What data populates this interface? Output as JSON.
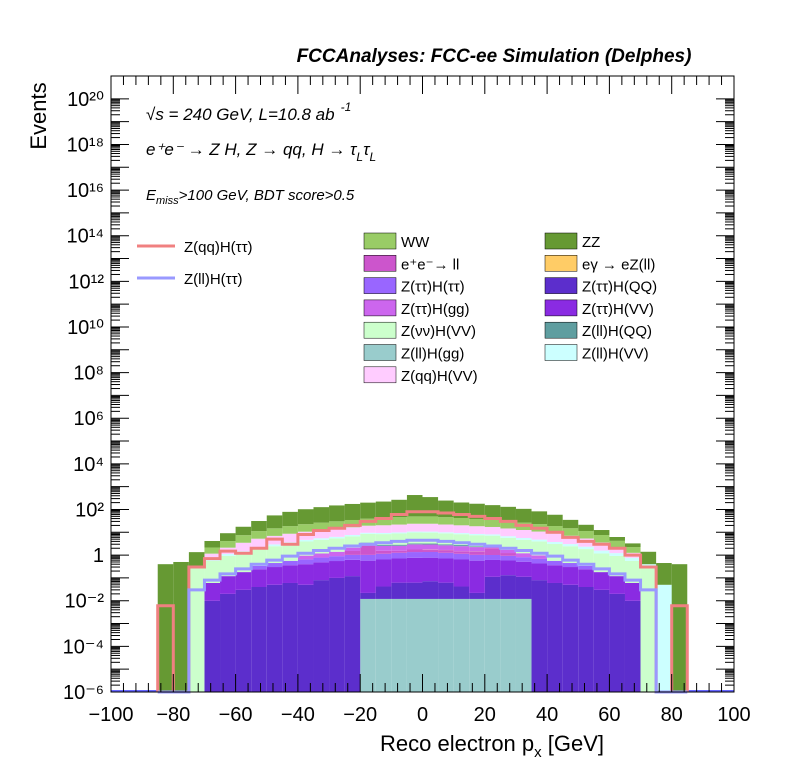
{
  "chart_data": {
    "type": "bar",
    "title": "FCCAnalyses: FCC-ee Simulation (Delphes)",
    "xlabel": "Reco electron p",
    "xlabel_sub": "x",
    "xlabel_unit": " [GeV]",
    "ylabel": "Events",
    "xlim": [
      -100,
      100
    ],
    "ylim": [
      1e-06,
      1e+21
    ],
    "log_y": true,
    "grid": false,
    "legend_position": "top",
    "x_tick_labels": [
      "−100",
      "−80",
      "−60",
      "−40",
      "−20",
      "0",
      "20",
      "40",
      "60",
      "80",
      "100"
    ],
    "y_tick_labels": [
      "10⁻⁶",
      "10⁻⁴",
      "10⁻²",
      "1",
      "10²",
      "10⁴",
      "10⁶",
      "10⁸",
      "10¹⁰",
      "10¹²",
      "10¹⁴",
      "10¹⁶",
      "10¹⁸",
      "10²⁰"
    ],
    "annotations": {
      "line1": "√s = 240 GeV, L=10.8 ab",
      "line1_sup": "-1",
      "line2": "e⁺e⁻ → Z H, Z → qq, H → τ",
      "line2_sub": "L",
      "line3": "E",
      "line3_sub": "miss",
      "line3_rest": ">100 GeV, BDT score>0.5"
    },
    "bin_edges": [
      -85,
      -80,
      -75,
      -70,
      -65,
      -60,
      -55,
      -50,
      -45,
      -40,
      -35,
      -30,
      -25,
      -20,
      -15,
      -10,
      -5,
      0,
      5,
      10,
      15,
      20,
      25,
      30,
      35,
      40,
      45,
      50,
      55,
      60,
      65,
      70,
      75,
      80,
      85
    ],
    "stack_order": [
      "Z(ll)H(gg)",
      "Z(ττ)H(QQ)",
      "Z(ττ)H(VV)",
      "Z(ττ)H(ττ)",
      "e⁺e⁻→ ll",
      "eγ → eZ(ll)",
      "Z(ττ)H(gg)",
      "Z(ll)H(QQ)",
      "Z(νν)H(VV)",
      "Z(ll)H(VV)",
      "Z(qq)H(VV)",
      "WW",
      "ZZ"
    ],
    "series": [
      {
        "name": "Z(ll)H(gg)",
        "color": "#99cccc",
        "values": [
          0,
          0,
          0,
          0,
          0,
          0,
          0,
          0,
          0,
          0,
          0,
          0,
          0,
          0.012,
          0.012,
          0.012,
          0.012,
          0.012,
          0.012,
          0.012,
          0.012,
          0.012,
          0.012,
          0.012,
          0,
          0,
          0,
          0,
          0,
          0,
          0,
          0,
          0,
          0
        ]
      },
      {
        "name": "Z(ττ)H(QQ)",
        "color": "#5c2ecc",
        "values": [
          0,
          0,
          0,
          0.01,
          0.02,
          0.03,
          0.04,
          0.05,
          0.06,
          0.05,
          0.08,
          0.1,
          0.12,
          0.01,
          0.03,
          0.05,
          0.05,
          0.06,
          0.05,
          0.03,
          0.01,
          0.1,
          0.12,
          0.1,
          0.08,
          0.06,
          0.05,
          0.04,
          0.03,
          0.02,
          0.01,
          0,
          0,
          0
        ]
      },
      {
        "name": "Z(ττ)H(VV)",
        "color": "#8a2be2",
        "values": [
          0,
          0,
          0,
          0.05,
          0.1,
          0.15,
          0.2,
          0.25,
          0.3,
          0.35,
          0.4,
          0.45,
          0.5,
          0.55,
          0.6,
          0.65,
          0.7,
          0.7,
          0.65,
          0.6,
          0.55,
          0.5,
          0.45,
          0.4,
          0.35,
          0.3,
          0.25,
          0.2,
          0.15,
          0.1,
          0.05,
          0,
          0,
          0
        ]
      },
      {
        "name": "Z(ττ)H(ττ)",
        "color": "#9966ff",
        "values": [
          0,
          0,
          0,
          0,
          0,
          0,
          0.1,
          0.15,
          0.2,
          0.25,
          0.3,
          0.35,
          0.4,
          0.45,
          0.5,
          0.55,
          0.6,
          0.6,
          0.55,
          0.5,
          0.45,
          0.4,
          0.35,
          0.3,
          0.25,
          0.2,
          0.15,
          0.1,
          0,
          0,
          0,
          0,
          0,
          0
        ]
      },
      {
        "name": "e⁺e⁻→ ll",
        "color": "#cc55cc",
        "values": [
          0,
          0,
          0,
          0,
          0,
          0,
          0,
          0,
          0,
          0,
          0,
          0,
          0.5,
          1.5,
          0.4,
          0.3,
          0.4,
          0.3,
          0.4,
          0.3,
          0.4,
          1.0,
          0.3,
          0,
          0,
          0,
          0,
          0,
          0,
          0,
          0,
          0,
          0,
          0
        ]
      },
      {
        "name": "eγ → eZ(ll)",
        "color": "#ffcc66",
        "values": [
          0,
          0,
          0,
          0,
          0,
          0,
          0,
          0,
          0,
          0,
          0,
          0,
          0,
          0,
          0,
          0,
          0,
          0.05,
          0.02,
          0.02,
          0.02,
          0.01,
          0,
          0,
          0,
          0,
          0,
          0,
          0,
          0,
          0,
          0,
          0,
          0
        ]
      },
      {
        "name": "Z(ττ)H(gg)",
        "color": "#cc66ee",
        "values": [
          0,
          0,
          0,
          0,
          0,
          0,
          0,
          0,
          0,
          0.3,
          0.4,
          0.5,
          0.6,
          0.8,
          1.0,
          1.0,
          1.2,
          1.2,
          1.0,
          1.0,
          0.8,
          0.6,
          0.5,
          0.4,
          0.3,
          0,
          0,
          0,
          0,
          0,
          0,
          0,
          0,
          0
        ]
      },
      {
        "name": "Z(ll)H(QQ)",
        "color": "#5f9ea0",
        "values": [
          0,
          0,
          0,
          0,
          0,
          0,
          0,
          0,
          0,
          0,
          0,
          0,
          0,
          0.2,
          0.3,
          0.3,
          0.3,
          0.3,
          0.3,
          0.3,
          0.2,
          0,
          0,
          0,
          0,
          0,
          0,
          0,
          0,
          0,
          0,
          0,
          0,
          0
        ]
      },
      {
        "name": "Z(νν)H(VV)",
        "color": "#ccffcc",
        "values": [
          0,
          0,
          0.3,
          0.5,
          0.8,
          1.0,
          1.5,
          2.0,
          2.5,
          3.0,
          3.5,
          4.0,
          4.5,
          5.0,
          5.5,
          6.0,
          6.5,
          6.5,
          6.0,
          5.5,
          5.0,
          4.5,
          4.0,
          3.5,
          3.0,
          2.5,
          2.0,
          1.5,
          1.0,
          0.8,
          0.5,
          0.3,
          0,
          0
        ]
      },
      {
        "name": "Z(ll)H(VV)",
        "color": "#ccffff",
        "values": [
          0,
          0,
          0.05,
          0.1,
          0.2,
          0.3,
          0.4,
          0.5,
          0.6,
          0.7,
          0.8,
          0.9,
          1.0,
          1.0,
          1.0,
          1.0,
          1.0,
          1.0,
          1.0,
          1.0,
          1.0,
          1.0,
          1.0,
          0.9,
          0.8,
          0.7,
          0.6,
          0.5,
          0.4,
          0.3,
          0.2,
          0.1,
          0.05,
          0
        ]
      },
      {
        "name": "Z(qq)H(VV)",
        "color": "#ffccff",
        "values": [
          0,
          0,
          0,
          0.5,
          1.0,
          2.0,
          3.0,
          4.0,
          5.0,
          6.0,
          7.0,
          8.0,
          9.0,
          10.0,
          11.0,
          12.0,
          13.0,
          13.0,
          12.0,
          11.0,
          10.0,
          9.0,
          8.0,
          7.0,
          6.0,
          5.0,
          4.0,
          3.0,
          2.0,
          1.0,
          0.5,
          0,
          0,
          0
        ]
      },
      {
        "name": "WW",
        "color": "#99cc66",
        "values": [
          0,
          0,
          0,
          1.0,
          2.0,
          4.0,
          6.0,
          8.0,
          10.0,
          12.0,
          14.0,
          16.0,
          18.0,
          20.0,
          22.0,
          24.0,
          26.0,
          26.0,
          24.0,
          22.0,
          20.0,
          18.0,
          16.0,
          14.0,
          12.0,
          10.0,
          8.0,
          6.0,
          4.0,
          2.0,
          1.0,
          0,
          0,
          0
        ]
      },
      {
        "name": "ZZ",
        "color": "#669933",
        "values": [
          0.4,
          0.5,
          1.0,
          2.0,
          5.0,
          10.0,
          20.0,
          40.0,
          60.0,
          80.0,
          100.0,
          120.0,
          140.0,
          160.0,
          180.0,
          220.0,
          380.0,
          300.0,
          200.0,
          160.0,
          140.0,
          120.0,
          100.0,
          80.0,
          60.0,
          40.0,
          20.0,
          10.0,
          5.0,
          2.0,
          1.0,
          1.0,
          0.4,
          0.4
        ]
      }
    ],
    "signal_lines": [
      {
        "name": "Z(qq)H(ττ)",
        "color": "#f08080",
        "values": [
          0.006,
          0,
          0.3,
          0.7,
          1.5,
          1.2,
          2.0,
          5.0,
          3.0,
          8.0,
          12.0,
          15.0,
          20.0,
          30.0,
          40.0,
          60.0,
          80.0,
          80.0,
          70.0,
          60.0,
          50.0,
          40.0,
          30.0,
          20.0,
          15.0,
          10.0,
          6.0,
          4.0,
          3.0,
          2.0,
          1.0,
          0.3,
          0,
          0.006
        ]
      },
      {
        "name": "Z(ll)H(ττ)",
        "color": "#9999ff",
        "values": [
          0,
          0,
          0.03,
          0.08,
          0.15,
          0.25,
          0.4,
          0.6,
          0.9,
          1.2,
          1.6,
          2.0,
          2.5,
          3.0,
          3.5,
          4.0,
          4.5,
          4.5,
          4.0,
          3.5,
          3.0,
          2.5,
          2.0,
          1.6,
          1.2,
          0.9,
          0.6,
          0.4,
          0.25,
          0.15,
          0.08,
          0.03,
          0,
          0
        ]
      }
    ]
  }
}
